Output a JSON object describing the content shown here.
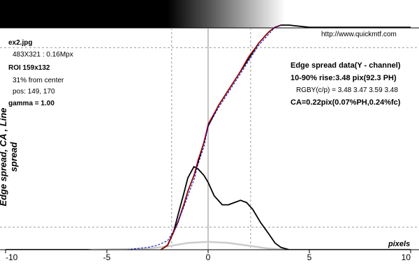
{
  "header": {
    "filename": "ex2.jpg",
    "image_size": "483X321 : 0.16Mpx",
    "roi": "ROI 159x132",
    "from_center": "31% from center",
    "pos": "pos: 149, 170",
    "gamma": "gamma = 1.00",
    "website": "http://www.quickmtf.com"
  },
  "results": {
    "heading": "Edge spread data(Y - channel)",
    "rise": "10-90% rise:3.48 pix(92.3 PH)",
    "rgby": "RGBY(c/p) = 3.48 3.47 3.59 3.48",
    "ca": "CA=0.22pix(0.07%PH,0.24%fc)"
  },
  "colors": {
    "edge_curve": "#000000",
    "red_curve": "#cc0000",
    "blue_curve": "#0000cc",
    "gray_curve": "#cccccc",
    "grid": "#999999"
  },
  "chart_data": {
    "type": "line",
    "title": "",
    "xlabel": "pixels",
    "ylabel": "Edge spread, CA , Line spread",
    "xlim": [
      -10,
      10
    ],
    "x_ticks": [
      -10,
      -5,
      0,
      5,
      10
    ],
    "tick_labels": [
      "-10",
      "-5",
      "0",
      "5",
      "10"
    ],
    "grid": true,
    "series": [
      {
        "role": "edge-spread",
        "x": [
          -10,
          -8,
          -6,
          -4,
          -3,
          -2.5,
          -2,
          -1.8,
          -1.5,
          -1.2,
          -1,
          -0.7,
          -0.5,
          -0.2,
          0,
          0.5,
          1,
          1.5,
          2,
          2.5,
          3,
          3.3,
          3.6,
          4,
          5,
          7,
          10
        ],
        "y": [
          0,
          0,
          0,
          -0.01,
          -0.02,
          -0.01,
          0.02,
          0.06,
          0.12,
          0.2,
          0.26,
          0.33,
          0.39,
          0.48,
          0.55,
          0.64,
          0.71,
          0.78,
          0.85,
          0.92,
          0.97,
          0.99,
          1.0,
          1.0,
          0.99,
          0.99,
          0.99
        ]
      },
      {
        "role": "line-spread",
        "x": [
          -10,
          -8,
          -6,
          -4,
          -3,
          -2.5,
          -2,
          -1.7,
          -1.5,
          -1.2,
          -1,
          -0.7,
          -0.5,
          -0.2,
          0,
          0.3,
          0.7,
          1,
          1.3,
          1.6,
          1.9,
          2.2,
          2.6,
          3,
          3.3,
          3.6,
          4,
          5,
          7,
          10
        ],
        "y": [
          0,
          0,
          0,
          -0.01,
          -0.02,
          -0.01,
          0.02,
          0.08,
          0.15,
          0.25,
          0.32,
          0.37,
          0.36,
          0.33,
          0.3,
          0.24,
          0.2,
          0.2,
          0.21,
          0.22,
          0.21,
          0.18,
          0.12,
          0.07,
          0.03,
          0.01,
          0,
          0,
          0,
          0
        ]
      },
      {
        "role": "edge-spread-red",
        "x": [
          -3,
          -2.5,
          -2,
          -1.8,
          -1.5,
          -1.2,
          -1,
          -0.7,
          -0.5,
          -0.2,
          0,
          0.5,
          1,
          1.5,
          2,
          2.5,
          3,
          3.3,
          3.6
        ],
        "y": [
          -0.02,
          -0.01,
          0.02,
          0.06,
          0.12,
          0.2,
          0.26,
          0.33,
          0.4,
          0.48,
          0.56,
          0.64,
          0.71,
          0.78,
          0.86,
          0.92,
          0.97,
          0.99,
          1.0
        ]
      },
      {
        "role": "edge-spread-blue",
        "x": [
          -4,
          -3,
          -2.5,
          -2,
          -1.8,
          -1.5,
          -1.2,
          -1,
          -0.7,
          -0.5,
          -0.2,
          0,
          0.5,
          1,
          1.5,
          2,
          2.5,
          3,
          3.3,
          3.6
        ],
        "y": [
          0,
          0.01,
          0.02,
          0.04,
          0.07,
          0.12,
          0.19,
          0.24,
          0.31,
          0.38,
          0.46,
          0.55,
          0.63,
          0.7,
          0.77,
          0.84,
          0.91,
          0.96,
          0.99,
          1.0
        ]
      },
      {
        "role": "chromatic-aberration",
        "x": [
          -10,
          -6,
          -4,
          -3,
          -2,
          -1,
          0,
          1,
          2,
          3,
          4,
          6,
          10
        ],
        "y": [
          0,
          0,
          0.003,
          0.005,
          0.015,
          0.03,
          0.035,
          0.03,
          0.018,
          0.005,
          0,
          0,
          0
        ]
      }
    ]
  }
}
